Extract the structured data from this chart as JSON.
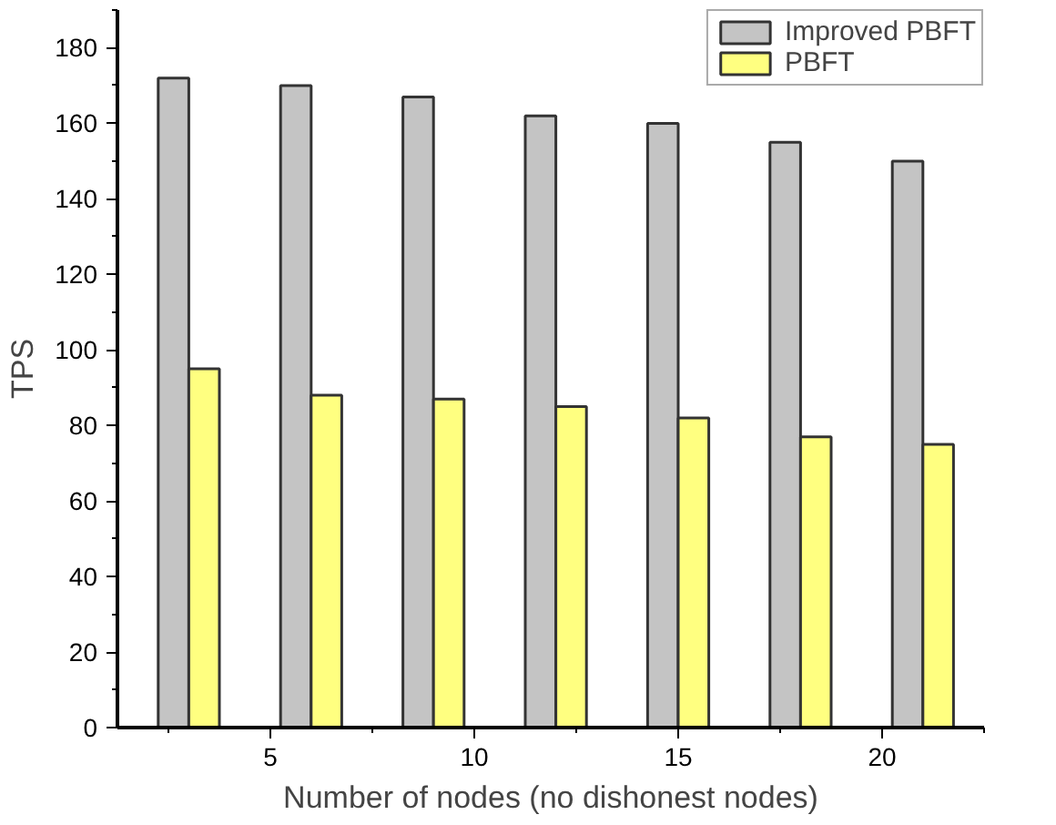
{
  "chart_data": {
    "type": "bar",
    "xlabel": "Number of nodes (no dishonest nodes)",
    "ylabel": "TPS",
    "x": [
      3,
      6,
      9,
      12,
      15,
      18,
      21
    ],
    "series": [
      {
        "name": "Improved PBFT",
        "color": "#c4c4c4",
        "values": [
          172,
          170,
          167,
          162,
          160,
          155,
          150
        ]
      },
      {
        "name": "PBFT",
        "color": "#ffff80",
        "values": [
          95,
          88,
          87,
          85,
          82,
          77,
          75
        ]
      }
    ],
    "xlim": [
      1.25,
      22.5
    ],
    "xticks": [
      5,
      10,
      15,
      20
    ],
    "ylim": [
      0,
      190
    ],
    "yticks": [
      0,
      20,
      40,
      60,
      80,
      100,
      120,
      140,
      160,
      180
    ],
    "grid": false,
    "legend": "top right"
  }
}
